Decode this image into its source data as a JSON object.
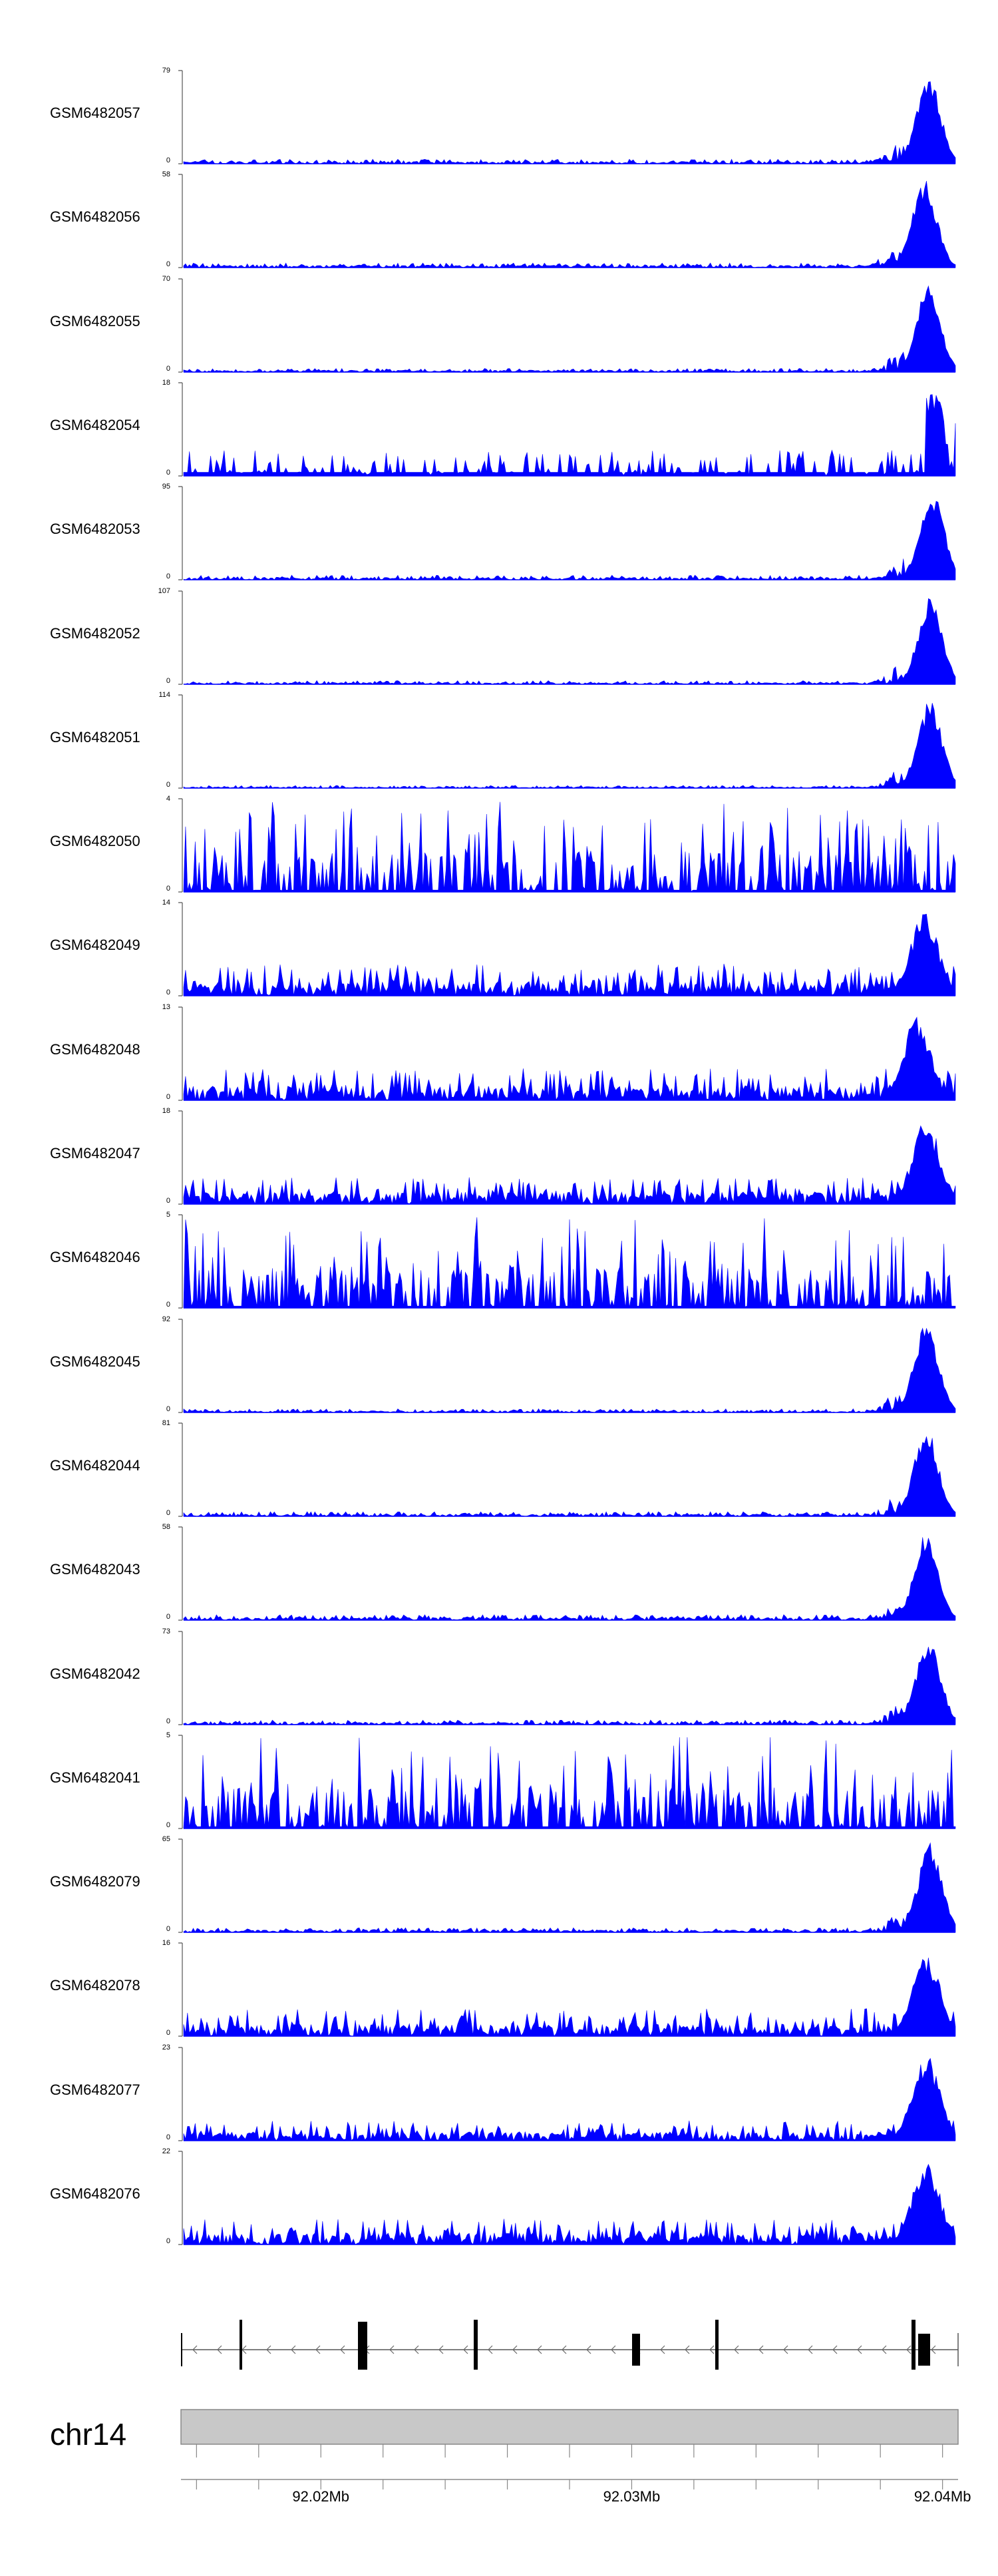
{
  "chart_data": {
    "type": "area",
    "color": "#0000FF",
    "chromosome": "chr14",
    "x_axis": {
      "ticks": [
        "92.02Mb",
        "92.03Mb",
        "92.04Mb"
      ],
      "range_mb": [
        92.0155,
        92.0405
      ]
    },
    "tracks": [
      {
        "name": "GSM6482057",
        "ymax": "79",
        "ymin": "0",
        "profile": "peak",
        "peak_pos": 0.965,
        "peak_frac": 0.98,
        "noise_frac": 0.05,
        "seed": 11
      },
      {
        "name": "GSM6482056",
        "ymax": "58",
        "ymin": "0",
        "profile": "peak",
        "peak_pos": 0.96,
        "peak_frac": 0.97,
        "noise_frac": 0.05,
        "seed": 12
      },
      {
        "name": "GSM6482055",
        "ymax": "70",
        "ymin": "0",
        "profile": "peak",
        "peak_pos": 0.965,
        "peak_frac": 0.95,
        "noise_frac": 0.04,
        "seed": 13
      },
      {
        "name": "GSM6482054",
        "ymax": "18",
        "ymin": "0",
        "profile": "sparse",
        "peak_pos": 0.972,
        "peak_frac": 0.95,
        "noise_frac": 0.28,
        "seed": 14
      },
      {
        "name": "GSM6482053",
        "ymax": "95",
        "ymin": "0",
        "profile": "peak",
        "peak_pos": 0.97,
        "peak_frac": 0.98,
        "noise_frac": 0.05,
        "seed": 15
      },
      {
        "name": "GSM6482052",
        "ymax": "107",
        "ymin": "0",
        "profile": "peak",
        "peak_pos": 0.967,
        "peak_frac": 0.96,
        "noise_frac": 0.04,
        "seed": 16
      },
      {
        "name": "GSM6482051",
        "ymax": "114",
        "ymin": "0",
        "profile": "peak",
        "peak_pos": 0.967,
        "peak_frac": 0.97,
        "noise_frac": 0.03,
        "seed": 17
      },
      {
        "name": "GSM6482050",
        "ymax": "4",
        "ymin": "0",
        "profile": "spiky",
        "peak_pos": 0.96,
        "peak_frac": 1.0,
        "noise_frac": 1.0,
        "seed": 18
      },
      {
        "name": "GSM6482049",
        "ymax": "14",
        "ymin": "0",
        "profile": "noisy",
        "peak_pos": 0.96,
        "peak_frac": 0.95,
        "noise_frac": 0.35,
        "seed": 19
      },
      {
        "name": "GSM6482048",
        "ymax": "13",
        "ymin": "0",
        "profile": "noisy",
        "peak_pos": 0.95,
        "peak_frac": 0.95,
        "noise_frac": 0.35,
        "seed": 20
      },
      {
        "name": "GSM6482047",
        "ymax": "18",
        "ymin": "0",
        "profile": "noisy",
        "peak_pos": 0.962,
        "peak_frac": 0.95,
        "noise_frac": 0.3,
        "seed": 21
      },
      {
        "name": "GSM6482046",
        "ymax": "5",
        "ymin": "0",
        "profile": "spiky",
        "peak_pos": 0.99,
        "peak_frac": 1.0,
        "noise_frac": 0.95,
        "seed": 22
      },
      {
        "name": "GSM6482045",
        "ymax": "92",
        "ymin": "0",
        "profile": "peak",
        "peak_pos": 0.962,
        "peak_frac": 0.98,
        "noise_frac": 0.04,
        "seed": 23
      },
      {
        "name": "GSM6482044",
        "ymax": "81",
        "ymin": "0",
        "profile": "peak",
        "peak_pos": 0.962,
        "peak_frac": 0.98,
        "noise_frac": 0.05,
        "seed": 24
      },
      {
        "name": "GSM6482043",
        "ymax": "58",
        "ymin": "0",
        "profile": "peak",
        "peak_pos": 0.962,
        "peak_frac": 0.95,
        "noise_frac": 0.06,
        "seed": 25
      },
      {
        "name": "GSM6482042",
        "ymax": "73",
        "ymin": "0",
        "profile": "peak",
        "peak_pos": 0.965,
        "peak_frac": 0.97,
        "noise_frac": 0.05,
        "seed": 26
      },
      {
        "name": "GSM6482041",
        "ymax": "5",
        "ymin": "0",
        "profile": "spiky",
        "peak_pos": 0.975,
        "peak_frac": 1.0,
        "noise_frac": 0.9,
        "seed": 27
      },
      {
        "name": "GSM6482079",
        "ymax": "65",
        "ymin": "0",
        "profile": "peak",
        "peak_pos": 0.967,
        "peak_frac": 0.98,
        "noise_frac": 0.05,
        "seed": 28
      },
      {
        "name": "GSM6482078",
        "ymax": "16",
        "ymin": "0",
        "profile": "noisy",
        "peak_pos": 0.962,
        "peak_frac": 0.95,
        "noise_frac": 0.3,
        "seed": 29
      },
      {
        "name": "GSM6482077",
        "ymax": "23",
        "ymin": "0",
        "profile": "noisy",
        "peak_pos": 0.962,
        "peak_frac": 0.95,
        "noise_frac": 0.22,
        "seed": 30
      },
      {
        "name": "GSM6482076",
        "ymax": "22",
        "ymin": "0",
        "profile": "noisy",
        "peak_pos": 0.962,
        "peak_frac": 0.95,
        "noise_frac": 0.28,
        "seed": 31
      }
    ]
  }
}
